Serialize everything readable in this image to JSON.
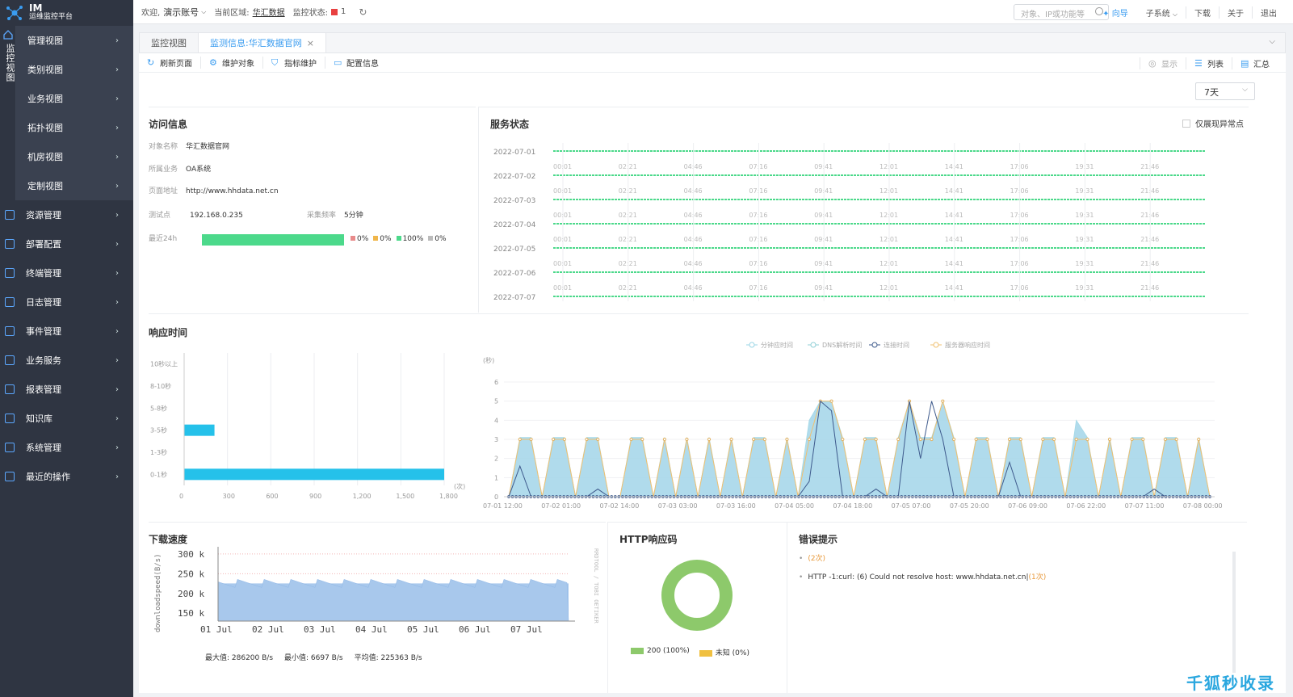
{
  "app": {
    "logo_title": "IM",
    "logo_subtitle": "运维监控平台"
  },
  "monitor_strip_label": "监控视图",
  "subnav": [
    {
      "label": "管理视图"
    },
    {
      "label": "类别视图"
    },
    {
      "label": "业务视图"
    },
    {
      "label": "拓扑视图"
    },
    {
      "label": "机房视图"
    },
    {
      "label": "定制视图"
    }
  ],
  "mainnav": [
    {
      "label": "资源管理"
    },
    {
      "label": "部署配置"
    },
    {
      "label": "终端管理"
    },
    {
      "label": "日志管理"
    },
    {
      "label": "事件管理"
    },
    {
      "label": "业务服务"
    },
    {
      "label": "报表管理"
    },
    {
      "label": "知识库"
    },
    {
      "label": "系统管理"
    },
    {
      "label": "最近的操作"
    }
  ],
  "topbar": {
    "welcome": "欢迎,",
    "account": "演示账号",
    "region_label": "当前区域:",
    "region_value": "华汇数据",
    "monitor_status_label": "监控状态:",
    "monitor_status_count": "1",
    "search_placeholder": "对象、IP或功能等",
    "guide": "向导",
    "subsystem": "子系统",
    "download": "下载",
    "about": "关于",
    "logout": "退出"
  },
  "tabs": [
    {
      "label": "监控视图",
      "active": false
    },
    {
      "label": "监测信息:华汇数据官网",
      "active": true
    }
  ],
  "toolbar": {
    "refresh": "刷新页面",
    "maintain_object": "维护对象",
    "metric_maintain": "指标维护",
    "config_info": "配置信息",
    "display": "显示",
    "list": "列表",
    "summary": "汇总"
  },
  "range_select": "7天",
  "access_info": {
    "title": "访问信息",
    "object_name_label": "对象名称",
    "object_name": "华汇数据官网",
    "business_label": "所属业务",
    "business": "OA系统",
    "page_url_label": "页面地址",
    "page_url": "http://www.hhdata.net.cn",
    "probe_label": "测试点",
    "probe": "192.168.0.235",
    "freq_label": "采集频率",
    "freq": "5分钟",
    "last24_label": "最近24h",
    "legend": [
      {
        "text": "0%",
        "color": "#e88a8a"
      },
      {
        "text": "0%",
        "color": "#f0b64a"
      },
      {
        "text": "100%",
        "color": "#4cd98b"
      },
      {
        "text": "0%",
        "color": "#bbbbbb"
      }
    ]
  },
  "service_status": {
    "title": "服务状态",
    "only_abnormal": "仅展现异常点",
    "dates": [
      "2022-07-01",
      "2022-07-02",
      "2022-07-03",
      "2022-07-04",
      "2022-07-05",
      "2022-07-06",
      "2022-07-07"
    ],
    "times": [
      "00:01",
      "02:21",
      "04:46",
      "07:16",
      "09:41",
      "12:01",
      "14:41",
      "17:06",
      "19:31",
      "21:46"
    ]
  },
  "response_time": {
    "title": "响应时间",
    "legend": [
      "分钟应时间",
      "DNS解析时间",
      "连接时间",
      "服务器响应时间"
    ],
    "y_unit": "(秒)",
    "x_unit": "(次)"
  },
  "download": {
    "title": "下载速度",
    "y_label": "downloadspeed(B/s)",
    "right_label": "RRDTOOL / TOBI OETIKER",
    "max": "最大值: 286200 B/s",
    "min": "最小值: 6697 B/s",
    "avg": "平均值: 225363 B/s"
  },
  "http": {
    "title": "HTTP响应码",
    "legend": [
      {
        "text": "200 (100%)",
        "color": "#8dc96b"
      },
      {
        "text": "未知 (0%)",
        "color": "#f0c040"
      }
    ]
  },
  "errors": {
    "title": "错误提示",
    "items": [
      {
        "text": "",
        "count": "(2次)"
      },
      {
        "text": "HTTP -1:curl: (6) Could not resolve host: www.hhdata.net.cn|",
        "count": "(1次)"
      }
    ]
  },
  "watermark": "千狐秒收录",
  "chart_data": [
    {
      "type": "bar",
      "title": "响应时间",
      "categories": [
        "10秒以上",
        "8-10秒",
        "5-8秒",
        "3-5秒",
        "1-3秒",
        "0-1秒"
      ],
      "values": [
        0,
        0,
        2,
        210,
        0,
        1800
      ],
      "xlim": [
        0,
        1800
      ],
      "xticks": [
        0,
        300,
        600,
        900,
        1200,
        1500,
        1800
      ],
      "xtick_labels": [
        "0",
        "300",
        "600",
        "900",
        "1,200",
        "1,500",
        "1,800"
      ],
      "xlabel": "(次)",
      "orientation": "horizontal",
      "color": "#25c1ea"
    },
    {
      "type": "area",
      "legend": [
        "分钟应时间",
        "DNS解析时间",
        "连接时间",
        "服务器响应时间"
      ],
      "ylabel": "(秒)",
      "ylim": [
        0,
        6
      ],
      "yticks": [
        0,
        1,
        2,
        3,
        4,
        5,
        6
      ],
      "x_labels": [
        "07-01 12:00",
        "07-02 01:00",
        "07-02 14:00",
        "07-03 03:00",
        "07-03 16:00",
        "07-04 05:00",
        "07-04 18:00",
        "07-05 07:00",
        "07-05 20:00",
        "07-06 09:00",
        "07-06 22:00",
        "07-07 11:00",
        "07-08 00:00"
      ],
      "series": [
        {
          "name": "服务器响应时间",
          "values": [
            0,
            3,
            3,
            0,
            3,
            3,
            0,
            3,
            3,
            0,
            0,
            3,
            3,
            0,
            3,
            0,
            3,
            0,
            3,
            0,
            3,
            0,
            3,
            3,
            0,
            3,
            0,
            3,
            5,
            5,
            3,
            0,
            3,
            3,
            0,
            3,
            5,
            3,
            3,
            5,
            3,
            0,
            3,
            3,
            0,
            3,
            3,
            0,
            3,
            3,
            0,
            3,
            3,
            0,
            3,
            0,
            3,
            3,
            0,
            3,
            3,
            0,
            3,
            0
          ]
        },
        {
          "name": "连接时间",
          "values": [
            0,
            1.6,
            0,
            0,
            0,
            0,
            0,
            0,
            0.4,
            0,
            0,
            0,
            0,
            0,
            0,
            0,
            0,
            0,
            0,
            0,
            0,
            0,
            0,
            0,
            0,
            0,
            0,
            0.8,
            5,
            4.5,
            0,
            0,
            0,
            0.4,
            0,
            0,
            5,
            2,
            5,
            3,
            0,
            0,
            0,
            0,
            0,
            1.8,
            0,
            0,
            0,
            0,
            0,
            0,
            0,
            0,
            0,
            0,
            0,
            0,
            0.4,
            0,
            0,
            0,
            0,
            0
          ]
        },
        {
          "name": "分钟应时间",
          "values": [
            0,
            3.1,
            3.1,
            0,
            3.1,
            3.1,
            0,
            3.1,
            3.1,
            0,
            0,
            3.1,
            3.1,
            0,
            3.1,
            0,
            3.1,
            0,
            3.1,
            0,
            3.1,
            0,
            3.1,
            3.1,
            0,
            3.1,
            0,
            4,
            5,
            5,
            3.1,
            0,
            3.1,
            3.1,
            0,
            3.1,
            5,
            3.1,
            3.1,
            5,
            3.1,
            0,
            3.1,
            3.1,
            0,
            3.1,
            3.1,
            0,
            3.1,
            3.1,
            0,
            4,
            3.1,
            0,
            3.1,
            0,
            3.1,
            3.1,
            0,
            3.1,
            3.1,
            0,
            3.1,
            0
          ]
        }
      ]
    },
    {
      "type": "area",
      "title": "下载速度",
      "ylabel": "downloadspeed(B/s)",
      "yticks": [
        "150 k",
        "200 k",
        "250 k",
        "300 k"
      ],
      "ylim": [
        130000,
        310000
      ],
      "x_labels": [
        "01 Jul",
        "02 Jul",
        "03 Jul",
        "04 Jul",
        "05 Jul",
        "06 Jul",
        "07 Jul"
      ],
      "typical_value": 225363,
      "max": 286200,
      "min": 6697
    },
    {
      "type": "pie",
      "title": "HTTP响应码",
      "labels": [
        "200",
        "未知"
      ],
      "values": [
        100,
        0
      ]
    }
  ]
}
